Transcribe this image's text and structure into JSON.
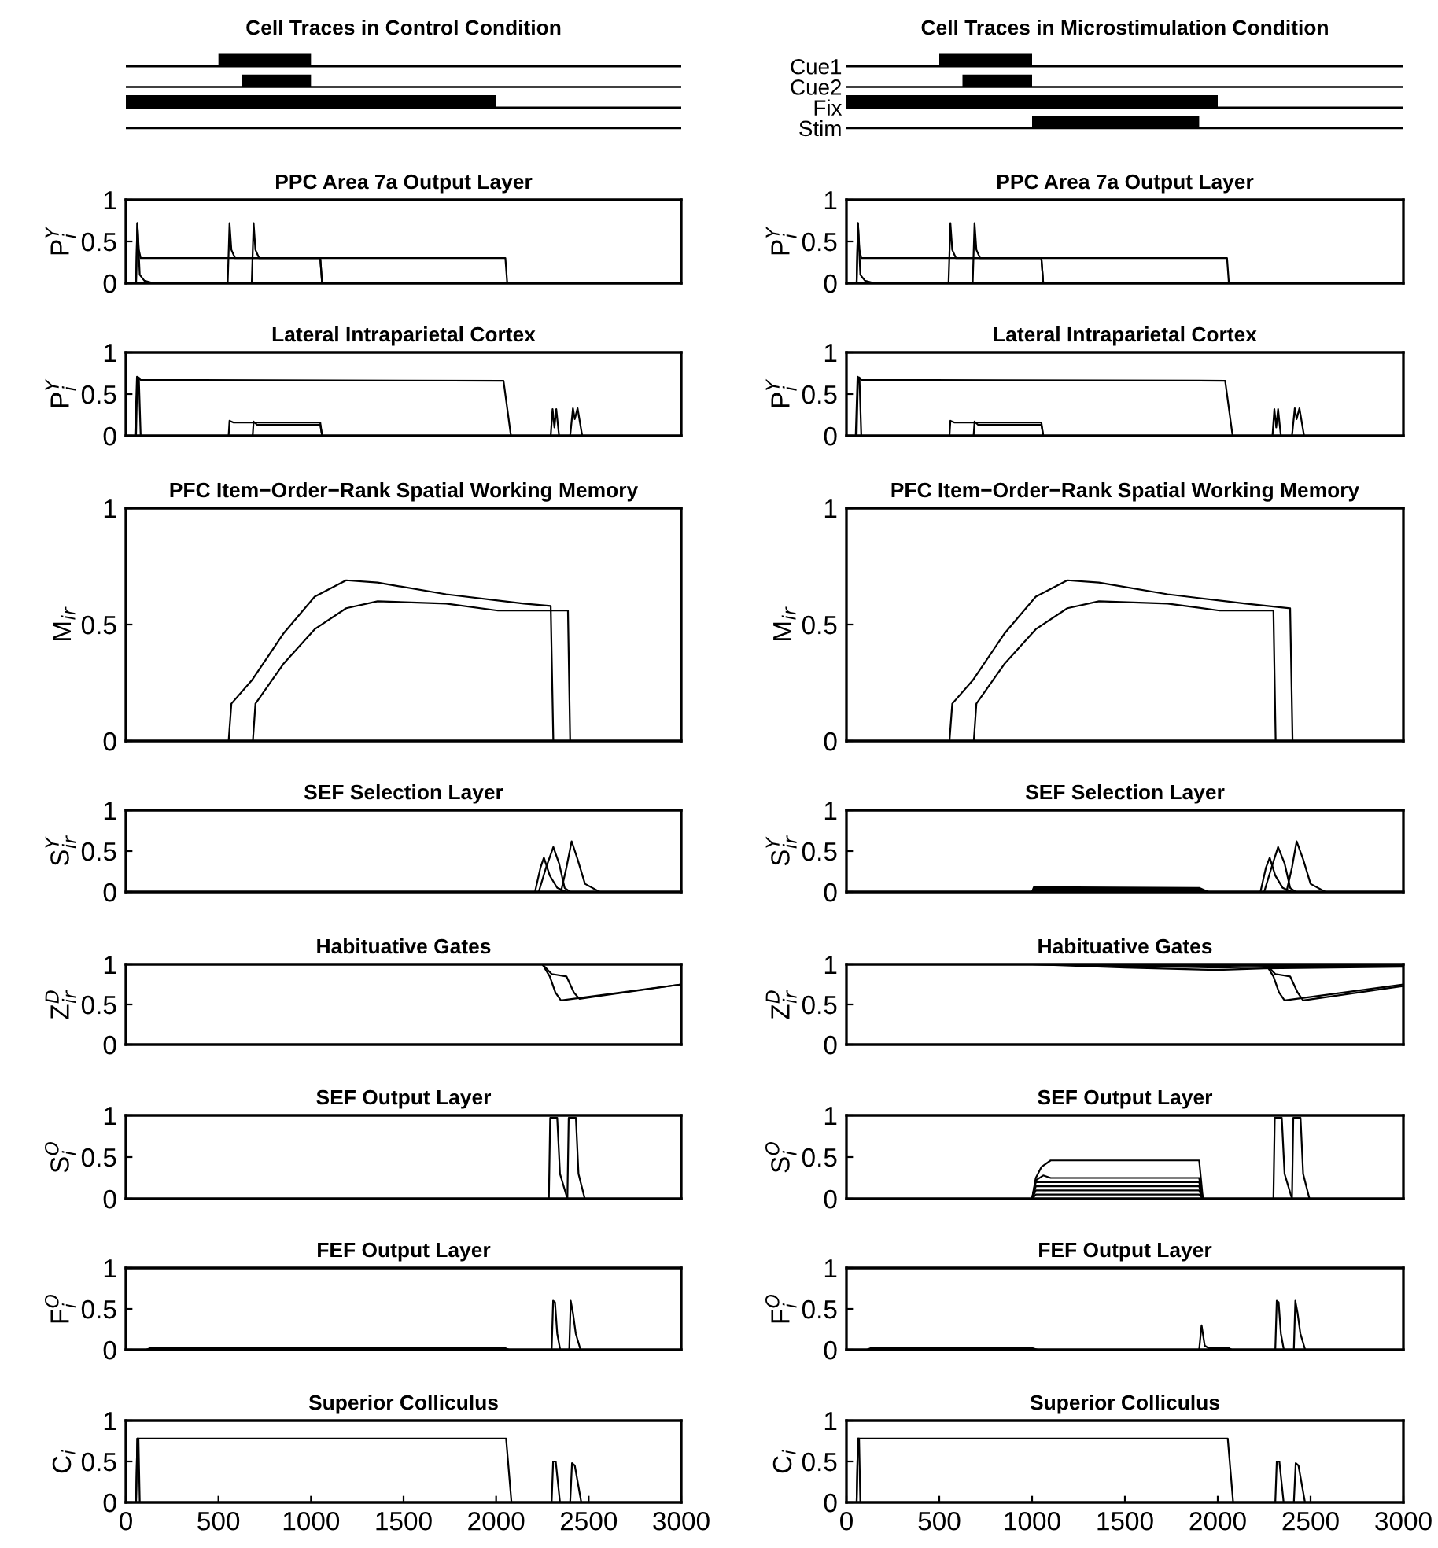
{
  "chart_data": [
    {
      "type": "bar",
      "orientation": "horizontal",
      "title": "Cell Traces in Control Condition",
      "categories": [
        null,
        null,
        null,
        null
      ],
      "values": [
        500,
        375,
        2000,
        null
      ],
      "base": [
        500,
        625,
        0,
        null
      ],
      "color": "#000000",
      "xlim": [
        0,
        3000
      ],
      "grid": "y",
      "tick_labels": false
    },
    {
      "type": "bar",
      "orientation": "horizontal",
      "title": "Cell Traces in Microstimulation Condition",
      "categories": [
        "Cue1",
        "Cue2",
        "Fix",
        "Stim"
      ],
      "values": [
        500,
        375,
        2000,
        900
      ],
      "base": [
        500,
        625,
        0,
        1000
      ],
      "color": "#000000",
      "xlim": [
        0,
        3000
      ],
      "grid": "y",
      "tick_labels": "y"
    },
    {
      "type": "line",
      "title": "PPC Area 7a Output Layer",
      "ylabel": "P$^{Y}$$_{i}$",
      "xlim": [
        0,
        3000
      ],
      "ylim": [
        0,
        1
      ],
      "yticks": [
        0,
        0.5,
        1
      ],
      "tick_labels": "y",
      "series": [
        {
          "color": "#000000",
          "x": [
            0,
            55,
            62,
            70,
            80,
            100,
            2050,
            2060,
            3000
          ],
          "values": [
            0,
            0,
            0.72,
            0.4,
            0.3,
            0.3,
            0.3,
            0,
            0
          ]
        },
        {
          "color": "#000000",
          "x": [
            0,
            55,
            62,
            75,
            100,
            150,
            3000
          ],
          "values": [
            0,
            0,
            0.72,
            0.1,
            0.03,
            0,
            0
          ]
        },
        {
          "color": "#000000",
          "x": [
            0,
            550,
            560,
            570,
            590,
            1050,
            1060,
            3000
          ],
          "values": [
            0,
            0,
            0.72,
            0.4,
            0.3,
            0.3,
            0,
            0
          ]
        },
        {
          "color": "#000000",
          "x": [
            0,
            680,
            690,
            700,
            720,
            1050,
            1060,
            3000
          ],
          "values": [
            0,
            0,
            0.72,
            0.4,
            0.3,
            0.3,
            0,
            0
          ]
        }
      ]
    },
    {
      "type": "line",
      "title": "PPC Area 7a Output Layer",
      "ylabel": "P$^{Y}$$_{i}$",
      "xlim": [
        0,
        3000
      ],
      "ylim": [
        0,
        1
      ],
      "yticks": [
        0,
        0.5,
        1
      ],
      "tick_labels": "y",
      "series": [
        {
          "color": "#000000",
          "x": [
            0,
            55,
            62,
            70,
            80,
            100,
            2050,
            2060,
            3000
          ],
          "values": [
            0,
            0,
            0.72,
            0.4,
            0.3,
            0.3,
            0.3,
            0,
            0
          ]
        },
        {
          "color": "#000000",
          "x": [
            0,
            55,
            62,
            75,
            100,
            150,
            3000
          ],
          "values": [
            0,
            0,
            0.72,
            0.1,
            0.03,
            0,
            0
          ]
        },
        {
          "color": "#000000",
          "x": [
            0,
            550,
            560,
            570,
            590,
            1050,
            1060,
            3000
          ],
          "values": [
            0,
            0,
            0.72,
            0.4,
            0.3,
            0.3,
            0,
            0
          ]
        },
        {
          "color": "#000000",
          "x": [
            0,
            680,
            690,
            700,
            720,
            1050,
            1060,
            3000
          ],
          "values": [
            0,
            0,
            0.72,
            0.4,
            0.3,
            0.3,
            0,
            0
          ]
        }
      ]
    },
    {
      "type": "line",
      "title": "Lateral Intraparietal Cortex",
      "ylabel": "P$^{Y}$$_{i}$",
      "xlim": [
        0,
        3000
      ],
      "ylim": [
        0,
        1
      ],
      "yticks": [
        0,
        0.5,
        1
      ],
      "tick_labels": "y",
      "series": [
        {
          "color": "#000000",
          "x": [
            0,
            50,
            60,
            80,
            2040,
            2080,
            3000
          ],
          "values": [
            0,
            0,
            0.71,
            0.67,
            0.66,
            0,
            0
          ]
        },
        {
          "color": "#000000",
          "x": [
            0,
            55,
            62,
            70,
            80,
            3000
          ],
          "values": [
            0,
            0,
            0.7,
            0.7,
            0,
            0
          ]
        },
        {
          "color": "#000000",
          "x": [
            0,
            555,
            560,
            580,
            1050,
            1060,
            3000
          ],
          "values": [
            0,
            0,
            0.18,
            0.16,
            0.16,
            0,
            0
          ]
        },
        {
          "color": "#000000",
          "x": [
            0,
            685,
            690,
            710,
            1050,
            1060,
            3000
          ],
          "values": [
            0,
            0,
            0.17,
            0.13,
            0.13,
            0,
            0
          ]
        },
        {
          "color": "#000000",
          "x": [
            0,
            2295,
            2305,
            2315,
            2325,
            2340,
            3000
          ],
          "values": [
            0,
            0,
            0.32,
            0.1,
            0.32,
            0,
            0
          ]
        },
        {
          "color": "#000000",
          "x": [
            0,
            2400,
            2415,
            2425,
            2440,
            2465,
            3000
          ],
          "values": [
            0,
            0,
            0.33,
            0.2,
            0.33,
            0,
            0
          ]
        }
      ]
    },
    {
      "type": "line",
      "title": "Lateral Intraparietal Cortex",
      "ylabel": "P$^{Y}$$_{i}$",
      "xlim": [
        0,
        3000
      ],
      "ylim": [
        0,
        1
      ],
      "yticks": [
        0,
        0.5,
        1
      ],
      "tick_labels": "y",
      "series": [
        {
          "color": "#000000",
          "x": [
            0,
            50,
            60,
            80,
            2040,
            2080,
            3000
          ],
          "values": [
            0,
            0,
            0.71,
            0.67,
            0.66,
            0,
            0
          ]
        },
        {
          "color": "#000000",
          "x": [
            0,
            55,
            62,
            70,
            80,
            3000
          ],
          "values": [
            0,
            0,
            0.7,
            0.7,
            0,
            0
          ]
        },
        {
          "color": "#000000",
          "x": [
            0,
            555,
            560,
            580,
            1050,
            1060,
            3000
          ],
          "values": [
            0,
            0,
            0.18,
            0.16,
            0.16,
            0,
            0
          ]
        },
        {
          "color": "#000000",
          "x": [
            0,
            685,
            690,
            710,
            1050,
            1060,
            3000
          ],
          "values": [
            0,
            0,
            0.17,
            0.13,
            0.13,
            0,
            0
          ]
        },
        {
          "color": "#000000",
          "x": [
            0,
            2295,
            2305,
            2315,
            2325,
            2340,
            3000
          ],
          "values": [
            0,
            0,
            0.32,
            0.1,
            0.32,
            0,
            0
          ]
        },
        {
          "color": "#000000",
          "x": [
            0,
            2400,
            2415,
            2425,
            2440,
            2465,
            3000
          ],
          "values": [
            0,
            0,
            0.33,
            0.2,
            0.33,
            0,
            0
          ]
        }
      ]
    },
    {
      "type": "line",
      "title": "PFC Item−Order−Rank Spatial Working Memory",
      "ylabel": "M$_{ir}$",
      "xlim": [
        0,
        3000
      ],
      "ylim": [
        0,
        1
      ],
      "yticks": [
        0,
        0.5,
        1
      ],
      "tick_labels": "y",
      "series": [
        {
          "color": "#000000",
          "x": [
            555,
            570,
            680,
            850,
            1020,
            1190,
            1360,
            1730,
            2150,
            2295,
            2309
          ],
          "values": [
            0,
            0.16,
            0.26,
            0.46,
            0.62,
            0.69,
            0.68,
            0.63,
            0.59,
            0.58,
            0
          ]
        },
        {
          "color": "#000000",
          "x": [
            686,
            700,
            850,
            1020,
            1190,
            1360,
            1730,
            2010,
            2388,
            2400
          ],
          "values": [
            0,
            0.16,
            0.33,
            0.48,
            0.57,
            0.6,
            0.59,
            0.56,
            0.56,
            0
          ]
        }
      ]
    },
    {
      "type": "line",
      "title": "PFC Item−Order−Rank Spatial Working Memory",
      "ylabel": "M$_{ir}$",
      "xlim": [
        0,
        3000
      ],
      "ylim": [
        0,
        1
      ],
      "yticks": [
        0,
        0.5,
        1
      ],
      "tick_labels": "y",
      "series": [
        {
          "color": "#000000",
          "x": [
            555,
            570,
            680,
            850,
            1020,
            1190,
            1360,
            1730,
            2150,
            2390,
            2403
          ],
          "values": [
            0,
            0.16,
            0.26,
            0.46,
            0.62,
            0.69,
            0.68,
            0.63,
            0.59,
            0.57,
            0
          ]
        },
        {
          "color": "#000000",
          "x": [
            686,
            700,
            850,
            1020,
            1190,
            1360,
            1730,
            2010,
            2300,
            2312
          ],
          "values": [
            0,
            0.16,
            0.33,
            0.48,
            0.57,
            0.6,
            0.59,
            0.56,
            0.56,
            0
          ]
        }
      ]
    },
    {
      "type": "line",
      "title": "SEF Selection Layer",
      "ylabel": "S$^{Y}$$_{ir}$",
      "xlim": [
        0,
        3000
      ],
      "ylim": [
        0,
        1
      ],
      "yticks": [
        0,
        0.5,
        1
      ],
      "tick_labels": "y",
      "series": [
        {
          "color": "#000000",
          "x": [
            0,
            2210,
            2240,
            2258,
            2290,
            2330,
            2380,
            3000
          ],
          "values": [
            0,
            0,
            0.3,
            0.42,
            0.2,
            0.05,
            0,
            0
          ]
        },
        {
          "color": "#000000",
          "x": [
            0,
            2230,
            2270,
            2309,
            2340,
            2370,
            2400,
            3000
          ],
          "values": [
            0,
            0,
            0.3,
            0.55,
            0.35,
            0.05,
            0,
            0
          ]
        },
        {
          "color": "#000000",
          "x": [
            0,
            2350,
            2380,
            2408,
            2440,
            2480,
            2560,
            3000
          ],
          "values": [
            0,
            0,
            0.3,
            0.62,
            0.4,
            0.1,
            0,
            0
          ]
        }
      ]
    },
    {
      "type": "line",
      "title": "SEF Selection Layer",
      "ylabel": "S$^{Y}$$_{ir}$",
      "xlim": [
        0,
        3000
      ],
      "ylim": [
        0,
        1
      ],
      "yticks": [
        0,
        0.5,
        1
      ],
      "tick_labels": "y",
      "series": [
        {
          "color": "#000000",
          "x": [
            0,
            1000,
            1010,
            1900,
            1950,
            3000
          ],
          "values": [
            0,
            0,
            0.06,
            0.05,
            0,
            0
          ]
        },
        {
          "color": "#000000",
          "x": [
            0,
            1000,
            1010,
            1900,
            1950,
            3000
          ],
          "values": [
            0,
            0,
            0.04,
            0.04,
            0,
            0
          ]
        },
        {
          "color": "#000000",
          "x": [
            0,
            1000,
            1010,
            1900,
            1950,
            3000
          ],
          "values": [
            0,
            0,
            0.02,
            0.02,
            0,
            0
          ]
        },
        {
          "color": "#000000",
          "x": [
            0,
            2230,
            2260,
            2280,
            2310,
            2350,
            2400,
            3000
          ],
          "values": [
            0,
            0,
            0.3,
            0.42,
            0.2,
            0.05,
            0,
            0
          ]
        },
        {
          "color": "#000000",
          "x": [
            0,
            2250,
            2290,
            2325,
            2360,
            2390,
            2420,
            3000
          ],
          "values": [
            0,
            0,
            0.3,
            0.55,
            0.35,
            0.05,
            0,
            0
          ]
        },
        {
          "color": "#000000",
          "x": [
            0,
            2370,
            2400,
            2425,
            2460,
            2500,
            2580,
            3000
          ],
          "values": [
            0,
            0,
            0.3,
            0.62,
            0.4,
            0.1,
            0,
            0
          ]
        }
      ]
    },
    {
      "type": "line",
      "title": "Habituative Gates",
      "ylabel": "Z$^{D}$$_{ir}$",
      "xlim": [
        0,
        3000
      ],
      "ylim": [
        0,
        1
      ],
      "yticks": [
        0,
        0.5,
        1
      ],
      "tick_labels": "y",
      "series": [
        {
          "color": "#000000",
          "x": [
            0,
            2250,
            2290,
            2320,
            2350,
            3000
          ],
          "values": [
            1,
            1,
            0.85,
            0.65,
            0.55,
            0.75
          ]
        },
        {
          "color": "#000000",
          "x": [
            0,
            2250,
            2300,
            2380,
            2420,
            2450,
            3000
          ],
          "values": [
            1,
            1,
            0.88,
            0.85,
            0.65,
            0.57,
            0.75
          ]
        }
      ]
    },
    {
      "type": "line",
      "title": "Habituative Gates",
      "ylabel": "Z$^{D}$$_{ir}$",
      "xlim": [
        0,
        3000
      ],
      "ylim": [
        0,
        1
      ],
      "yticks": [
        0,
        0.5,
        1
      ],
      "tick_labels": "y",
      "series": [
        {
          "color": "#000000",
          "x": [
            0,
            1000,
            1500,
            2000,
            2250,
            3000
          ],
          "values": [
            1,
            1,
            0.96,
            0.93,
            0.95,
            0.97
          ]
        },
        {
          "color": "#000000",
          "x": [
            0,
            1000,
            1500,
            2000,
            2250,
            3000
          ],
          "values": [
            1,
            1,
            0.98,
            0.96,
            0.97,
            0.98
          ]
        },
        {
          "color": "#000000",
          "x": [
            0,
            1000,
            1500,
            2000,
            2250,
            3000
          ],
          "values": [
            1,
            1,
            0.99,
            0.98,
            0.99,
            0.99
          ]
        },
        {
          "color": "#000000",
          "x": [
            0,
            2260,
            2300,
            2330,
            2360,
            3000
          ],
          "values": [
            1,
            1,
            0.85,
            0.65,
            0.55,
            0.75
          ]
        },
        {
          "color": "#000000",
          "x": [
            0,
            2260,
            2310,
            2390,
            2430,
            2460,
            3000
          ],
          "values": [
            1,
            1,
            0.88,
            0.85,
            0.65,
            0.55,
            0.73
          ]
        }
      ]
    },
    {
      "type": "line",
      "title": "SEF Output Layer",
      "ylabel": "S$^{O}$$_{i}$",
      "xlim": [
        0,
        3000
      ],
      "ylim": [
        0,
        1
      ],
      "yticks": [
        0,
        0.5,
        1
      ],
      "tick_labels": "y",
      "series": [
        {
          "color": "#000000",
          "x": [
            0,
            2285,
            2292,
            2330,
            2345,
            2385,
            3000
          ],
          "values": [
            0,
            0,
            0.97,
            0.97,
            0.3,
            0,
            0
          ]
        },
        {
          "color": "#000000",
          "x": [
            0,
            2385,
            2392,
            2431,
            2445,
            2479,
            3000
          ],
          "values": [
            0,
            0,
            0.97,
            0.97,
            0.3,
            0,
            0
          ]
        }
      ]
    },
    {
      "type": "line",
      "title": "SEF Output Layer",
      "ylabel": "S$^{O}$$_{i}$",
      "xlim": [
        0,
        3000
      ],
      "ylim": [
        0,
        1
      ],
      "yticks": [
        0,
        0.5,
        1
      ],
      "tick_labels": "y",
      "series": [
        {
          "color": "#000000",
          "x": [
            0,
            1000,
            1020,
            1050,
            1100,
            1900,
            1920,
            3000
          ],
          "values": [
            0,
            0,
            0.25,
            0.38,
            0.46,
            0.46,
            0,
            0
          ]
        },
        {
          "color": "#000000",
          "x": [
            0,
            1000,
            1020,
            1060,
            1100,
            1900,
            1920,
            3000
          ],
          "values": [
            0,
            0,
            0.22,
            0.28,
            0.25,
            0.25,
            0,
            0
          ]
        },
        {
          "color": "#000000",
          "x": [
            0,
            1000,
            1020,
            1900,
            1920,
            3000
          ],
          "values": [
            0,
            0,
            0.2,
            0.2,
            0,
            0
          ]
        },
        {
          "color": "#000000",
          "x": [
            0,
            1000,
            1020,
            1900,
            1920,
            3000
          ],
          "values": [
            0,
            0,
            0.15,
            0.15,
            0,
            0
          ]
        },
        {
          "color": "#000000",
          "x": [
            0,
            1000,
            1020,
            1900,
            1920,
            3000
          ],
          "values": [
            0,
            0,
            0.1,
            0.1,
            0,
            0
          ]
        },
        {
          "color": "#000000",
          "x": [
            0,
            1000,
            1020,
            1900,
            1920,
            3000
          ],
          "values": [
            0,
            0,
            0.05,
            0.05,
            0,
            0
          ]
        },
        {
          "color": "#000000",
          "x": [
            0,
            2300,
            2307,
            2345,
            2360,
            2400,
            3000
          ],
          "values": [
            0,
            0,
            0.97,
            0.97,
            0.3,
            0,
            0
          ]
        },
        {
          "color": "#000000",
          "x": [
            0,
            2400,
            2407,
            2446,
            2460,
            2494,
            3000
          ],
          "values": [
            0,
            0,
            0.97,
            0.97,
            0.3,
            0,
            0
          ]
        }
      ]
    },
    {
      "type": "line",
      "title": "FEF Output Layer",
      "ylabel": "F$^{O}$$_{i}$",
      "xlim": [
        0,
        3000
      ],
      "ylim": [
        0,
        1
      ],
      "yticks": [
        0,
        0.5,
        1
      ],
      "tick_labels": "y",
      "series": [
        {
          "color": "#000000",
          "x": [
            0,
            110,
            130,
            2050,
            2070,
            3000
          ],
          "values": [
            0,
            0,
            0.02,
            0.02,
            0,
            0
          ]
        },
        {
          "color": "#000000",
          "x": [
            0,
            2300,
            2308,
            2318,
            2330,
            2346,
            3000
          ],
          "values": [
            0,
            0,
            0.6,
            0.58,
            0.2,
            0,
            0
          ]
        },
        {
          "color": "#000000",
          "x": [
            0,
            2395,
            2403,
            2415,
            2430,
            2456,
            3000
          ],
          "values": [
            0,
            0,
            0.6,
            0.45,
            0.2,
            0,
            0
          ]
        }
      ]
    },
    {
      "type": "line",
      "title": "FEF Output Layer",
      "ylabel": "F$^{O}$$_{i}$",
      "xlim": [
        0,
        3000
      ],
      "ylim": [
        0,
        1
      ],
      "yticks": [
        0,
        0.5,
        1
      ],
      "tick_labels": "y",
      "series": [
        {
          "color": "#000000",
          "x": [
            0,
            110,
            130,
            1000,
            1030,
            3000
          ],
          "values": [
            0,
            0,
            0.02,
            0.02,
            0,
            0
          ]
        },
        {
          "color": "#000000",
          "x": [
            0,
            1900,
            1913,
            1930,
            1950,
            2060,
            2075,
            3000
          ],
          "values": [
            0,
            0,
            0.3,
            0.05,
            0.02,
            0.02,
            0,
            0
          ]
        },
        {
          "color": "#000000",
          "x": [
            0,
            2310,
            2318,
            2328,
            2340,
            2356,
            3000
          ],
          "values": [
            0,
            0,
            0.6,
            0.58,
            0.2,
            0,
            0
          ]
        },
        {
          "color": "#000000",
          "x": [
            0,
            2410,
            2418,
            2430,
            2445,
            2471,
            3000
          ],
          "values": [
            0,
            0,
            0.6,
            0.45,
            0.2,
            0,
            0
          ]
        }
      ]
    },
    {
      "type": "line",
      "title": "Superior Colliculus",
      "ylabel": "C$_{i}$",
      "xlim": [
        0,
        3000
      ],
      "ylim": [
        0,
        1
      ],
      "xticks": [
        0,
        500,
        1000,
        1500,
        2000,
        2500,
        3000
      ],
      "yticks": [
        0,
        0.5,
        1
      ],
      "series": [
        {
          "color": "#000000",
          "x": [
            0,
            55,
            62,
            70,
            2054,
            2083,
            3000
          ],
          "values": [
            0,
            0,
            0.78,
            0.78,
            0.78,
            0,
            0
          ]
        },
        {
          "color": "#000000",
          "x": [
            0,
            55,
            62,
            68,
            75,
            3000
          ],
          "values": [
            0,
            0,
            0.78,
            0.78,
            0,
            0
          ]
        },
        {
          "color": "#000000",
          "x": [
            0,
            2300,
            2308,
            2322,
            2345,
            3000
          ],
          "values": [
            0,
            0,
            0.5,
            0.5,
            0,
            0
          ]
        },
        {
          "color": "#000000",
          "x": [
            0,
            2400,
            2410,
            2425,
            2460,
            3000
          ],
          "values": [
            0,
            0,
            0.48,
            0.45,
            0,
            0
          ]
        }
      ]
    },
    {
      "type": "line",
      "title": "Superior Colliculus",
      "ylabel": "C$_{i}$",
      "xlim": [
        0,
        3000
      ],
      "ylim": [
        0,
        1
      ],
      "xticks": [
        0,
        500,
        1000,
        1500,
        2000,
        2500,
        3000
      ],
      "yticks": [
        0,
        0.5,
        1
      ],
      "series": [
        {
          "color": "#000000",
          "x": [
            0,
            55,
            62,
            70,
            2054,
            2083,
            3000
          ],
          "values": [
            0,
            0,
            0.78,
            0.78,
            0.78,
            0,
            0
          ]
        },
        {
          "color": "#000000",
          "x": [
            0,
            55,
            62,
            68,
            75,
            3000
          ],
          "values": [
            0,
            0,
            0.78,
            0.78,
            0,
            0
          ]
        },
        {
          "color": "#000000",
          "x": [
            0,
            2310,
            2318,
            2332,
            2355,
            3000
          ],
          "values": [
            0,
            0,
            0.5,
            0.5,
            0,
            0
          ]
        },
        {
          "color": "#000000",
          "x": [
            0,
            2410,
            2420,
            2435,
            2470,
            3000
          ],
          "values": [
            0,
            0,
            0.48,
            0.45,
            0,
            0
          ]
        }
      ]
    }
  ]
}
